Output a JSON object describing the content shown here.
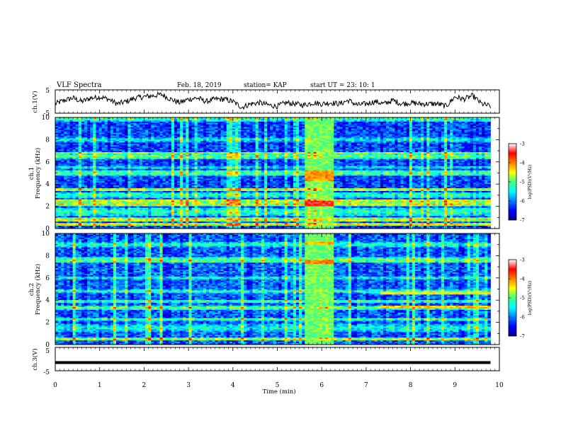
{
  "header": {
    "title": "VLF Spectra",
    "date": "Feb. 18, 2019",
    "station": "station= KAP",
    "start": "start  UT  =   23: 10: 1"
  },
  "chart_data": [
    {
      "type": "line",
      "panel": "ch1-waveform",
      "ylabel": "ch.1(V)",
      "ylim": [
        -5,
        5
      ],
      "yticks": [
        "5",
        "-5"
      ],
      "xlim": [
        0,
        10
      ],
      "series": [
        {
          "x": [
            0,
            0.2,
            0.4,
            0.6,
            0.8,
            1.0,
            1.2,
            1.4,
            1.6,
            1.8,
            2.0,
            2.2,
            2.4,
            2.6,
            2.8,
            3.0,
            3.2,
            3.4,
            3.6,
            3.8,
            4.0,
            4.2,
            4.4,
            4.6,
            4.8,
            5.0,
            5.2,
            5.4,
            5.6,
            5.8,
            6.0,
            6.2,
            6.4,
            6.6,
            6.8,
            7.0,
            7.2,
            7.4,
            7.6,
            7.8,
            8.0,
            8.2,
            8.4,
            8.6,
            8.8,
            9.0,
            9.2,
            9.4,
            9.6,
            9.8
          ],
          "y": [
            -1.0,
            0.5,
            1.5,
            0.0,
            1.5,
            2.0,
            1.0,
            -1.0,
            0.0,
            1.5,
            2.0,
            2.5,
            3.0,
            1.0,
            -0.5,
            1.0,
            1.5,
            0.0,
            1.0,
            1.0,
            0.0,
            -2.5,
            -1.0,
            -0.5,
            -1.5,
            -2.0,
            -0.5,
            -1.0,
            -1.5,
            -0.5,
            -1.0,
            -0.5,
            -1.0,
            0.5,
            -1.5,
            -1.0,
            0.0,
            -1.0,
            0.5,
            -1.0,
            -0.5,
            -1.0,
            -1.0,
            -1.0,
            -2.0,
            2.0,
            1.0,
            2.5,
            -1.0,
            -2.0
          ]
        }
      ]
    },
    {
      "type": "heatmap",
      "panel": "ch1-spectrogram",
      "ylabel": "ch.1",
      "ylabel2": "Frequency (kHz)",
      "ylim": [
        0,
        10
      ],
      "yticks": [
        "0",
        "2",
        "4",
        "6",
        "8",
        "10"
      ],
      "xlim": [
        0,
        10
      ],
      "x_extent": [
        0,
        9.8
      ],
      "z_range": [
        -7,
        -3
      ],
      "background_level": -6.2,
      "bands": [
        {
          "f": 9.9,
          "w": 0.25,
          "lev": -5.0
        },
        {
          "f": 8.0,
          "w": 0.2,
          "lev": -5.3
        },
        {
          "f": 6.8,
          "w": 0.12,
          "lev": -4.7
        },
        {
          "f": 6.5,
          "w": 0.2,
          "lev": -4.8
        },
        {
          "f": 5.5,
          "w": 0.15,
          "lev": -5.3
        },
        {
          "f": 5.0,
          "w": 0.25,
          "lev": -4.9
        },
        {
          "f": 3.5,
          "w": 0.12,
          "lev": -4.4
        },
        {
          "f": 3.0,
          "w": 0.25,
          "lev": -5.1
        },
        {
          "f": 2.5,
          "w": 0.1,
          "lev": -4.2
        },
        {
          "f": 2.2,
          "w": 0.15,
          "lev": -4.4
        },
        {
          "f": 1.5,
          "w": 0.4,
          "lev": -5.1
        },
        {
          "f": 0.8,
          "w": 0.15,
          "lev": -4.4
        },
        {
          "f": 0.4,
          "w": 0.15,
          "lev": -4.3
        }
      ],
      "events": [
        {
          "t0": 5.65,
          "t1": 6.3,
          "f0": 0,
          "f1": 10,
          "lev": -4.9
        },
        {
          "t0": 5.65,
          "t1": 6.3,
          "f0": 4.2,
          "f1": 5.3,
          "lev": -4.1
        },
        {
          "t0": 5.65,
          "t1": 6.3,
          "f0": 2.0,
          "f1": 2.5,
          "lev": -3.5
        }
      ]
    },
    {
      "type": "heatmap",
      "panel": "ch2-spectrogram",
      "ylabel": "ch.2",
      "ylabel2": "Frequency (kHz)",
      "ylim": [
        0,
        10
      ],
      "yticks": [
        "0",
        "2",
        "4",
        "6",
        "8",
        "10"
      ],
      "xlim": [
        0,
        10
      ],
      "x_extent": [
        0,
        9.8
      ],
      "z_range": [
        -7,
        -3
      ],
      "background_level": -6.1,
      "bands": [
        {
          "f": 9.0,
          "w": 0.2,
          "lev": -5.1
        },
        {
          "f": 7.6,
          "w": 0.25,
          "lev": -4.8
        },
        {
          "f": 6.0,
          "w": 0.15,
          "lev": -5.2
        },
        {
          "f": 4.8,
          "w": 0.15,
          "lev": -5.1
        },
        {
          "f": 3.9,
          "w": 0.12,
          "lev": -4.9
        },
        {
          "f": 3.3,
          "w": 0.15,
          "lev": -4.8
        },
        {
          "f": 2.3,
          "w": 0.12,
          "lev": -4.9
        },
        {
          "f": 1.5,
          "w": 0.4,
          "lev": -5.3
        },
        {
          "f": 0.5,
          "w": 0.15,
          "lev": -4.5
        }
      ],
      "events": [
        {
          "t0": 5.65,
          "t1": 6.3,
          "f0": 0,
          "f1": 10,
          "lev": -4.9
        },
        {
          "t0": 5.65,
          "t1": 6.3,
          "f0": 7.2,
          "f1": 7.6,
          "lev": -4.0
        },
        {
          "t0": 5.65,
          "t1": 6.3,
          "f0": 9.0,
          "f1": 9.3,
          "lev": -4.2
        },
        {
          "t0": 7.35,
          "t1": 9.8,
          "f0": 3.3,
          "f1": 3.5,
          "lev": -4.3
        },
        {
          "t0": 7.35,
          "t1": 9.8,
          "f0": 4.5,
          "f1": 4.7,
          "lev": -4.5
        }
      ]
    },
    {
      "type": "line",
      "panel": "ch3-waveform",
      "ylabel": "ch.3(V)",
      "ylim": [
        -5,
        5
      ],
      "yticks": [
        "5",
        "-5"
      ],
      "xlim": [
        0,
        10
      ],
      "xticks": [
        "0",
        "1",
        "2",
        "3",
        "4",
        "5",
        "6",
        "7",
        "8",
        "9",
        "10"
      ],
      "xlabel": "Time  (min)",
      "series": [
        {
          "x": [
            0,
            9.8
          ],
          "y": [
            -1.5,
            -1.5
          ]
        }
      ]
    }
  ],
  "colorbars": [
    {
      "ticks": [
        "-3",
        "-4",
        "-5",
        "-6",
        "-7"
      ],
      "label": "log(PSD)(V²/Hz)"
    },
    {
      "ticks": [
        "-3",
        "-4",
        "-5",
        "-6",
        "-7"
      ],
      "label": "log(PSD)(V²/Hz)"
    }
  ]
}
